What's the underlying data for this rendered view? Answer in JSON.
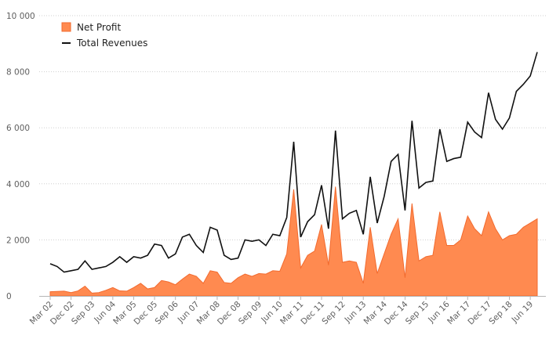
{
  "chart_data": {
    "type": "area",
    "ylim": [
      0,
      10000
    ],
    "yticks": [
      0,
      2000,
      4000,
      6000,
      8000,
      10000
    ],
    "ytick_labels": [
      "0",
      "2 000",
      "4 000",
      "6 000",
      "8 000",
      "10 000"
    ],
    "xtick_labels": [
      "Mar 02",
      "Dec 02",
      "Sep 03",
      "Jun 04",
      "Mar 05",
      "Dec 05",
      "Sep 06",
      "Jun 07",
      "Mar 08",
      "Dec 08",
      "Sep 09",
      "Jun 10",
      "Mar 11",
      "Dec 11",
      "Sep 12",
      "Jun 13",
      "Mar 14",
      "Dec 14",
      "Sep 15",
      "Jun 16",
      "Mar 17",
      "Dec 17",
      "Sep 18",
      "Jun 19"
    ],
    "x": [
      "Mar 02",
      "Jun 02",
      "Sep 02",
      "Dec 02",
      "Mar 03",
      "Jun 03",
      "Sep 03",
      "Dec 03",
      "Mar 04",
      "Jun 04",
      "Sep 04",
      "Dec 04",
      "Mar 05",
      "Jun 05",
      "Sep 05",
      "Dec 05",
      "Mar 06",
      "Jun 06",
      "Sep 06",
      "Dec 06",
      "Mar 07",
      "Jun 07",
      "Sep 07",
      "Dec 07",
      "Mar 08",
      "Jun 08",
      "Sep 08",
      "Dec 08",
      "Mar 09",
      "Jun 09",
      "Sep 09",
      "Dec 09",
      "Mar 10",
      "Jun 10",
      "Sep 10",
      "Dec 10",
      "Mar 11",
      "Jun 11",
      "Sep 11",
      "Dec 11",
      "Mar 12",
      "Jun 12",
      "Sep 12",
      "Dec 12",
      "Mar 13",
      "Jun 13",
      "Sep 13",
      "Dec 13",
      "Mar 14",
      "Jun 14",
      "Sep 14",
      "Dec 14",
      "Mar 15",
      "Jun 15",
      "Sep 15",
      "Dec 15",
      "Mar 16",
      "Jun 16",
      "Sep 16",
      "Dec 16",
      "Mar 17",
      "Jun 17",
      "Sep 17",
      "Dec 17",
      "Mar 18",
      "Jun 18",
      "Sep 18",
      "Dec 18",
      "Mar 19",
      "Jun 19",
      "Sep 19"
    ],
    "legend_position": "top-left",
    "grid": "horizontal",
    "series": [
      {
        "name": "Net Profit",
        "style": "area",
        "color": "#ff8a50",
        "edge_color": "#f26a2e",
        "values": [
          150,
          160,
          170,
          120,
          180,
          350,
          100,
          120,
          200,
          300,
          180,
          170,
          300,
          450,
          250,
          300,
          550,
          500,
          400,
          600,
          780,
          700,
          450,
          900,
          850,
          480,
          450,
          650,
          780,
          700,
          800,
          780,
          900,
          880,
          1500,
          3800,
          1000,
          1450,
          1600,
          2550,
          1100,
          3900,
          1200,
          1250,
          1200,
          450,
          2450,
          800,
          1500,
          2200,
          2750,
          650,
          3300,
          1250,
          1400,
          1450,
          3000,
          1800,
          1800,
          2000,
          2850,
          2400,
          2150,
          3000,
          2400,
          2000,
          2150,
          2200,
          2450,
          2600,
          2750
        ]
      },
      {
        "name": "Total Revenues",
        "style": "line",
        "color": "#111111",
        "values": [
          1150,
          1050,
          850,
          900,
          950,
          1250,
          950,
          1000,
          1050,
          1200,
          1400,
          1200,
          1400,
          1350,
          1450,
          1850,
          1800,
          1350,
          1500,
          2100,
          2200,
          1800,
          1550,
          2450,
          2350,
          1450,
          1300,
          1350,
          2000,
          1950,
          2000,
          1800,
          2200,
          2150,
          2800,
          5500,
          2100,
          2650,
          2900,
          3950,
          2400,
          5900,
          2750,
          2950,
          3050,
          2200,
          4250,
          2600,
          3550,
          4800,
          5050,
          3050,
          6250,
          3850,
          4050,
          4100,
          5950,
          4800,
          4900,
          4950,
          6200,
          5850,
          5650,
          7250,
          6300,
          5950,
          6350,
          7300,
          7550,
          7850,
          8700
        ]
      }
    ]
  }
}
